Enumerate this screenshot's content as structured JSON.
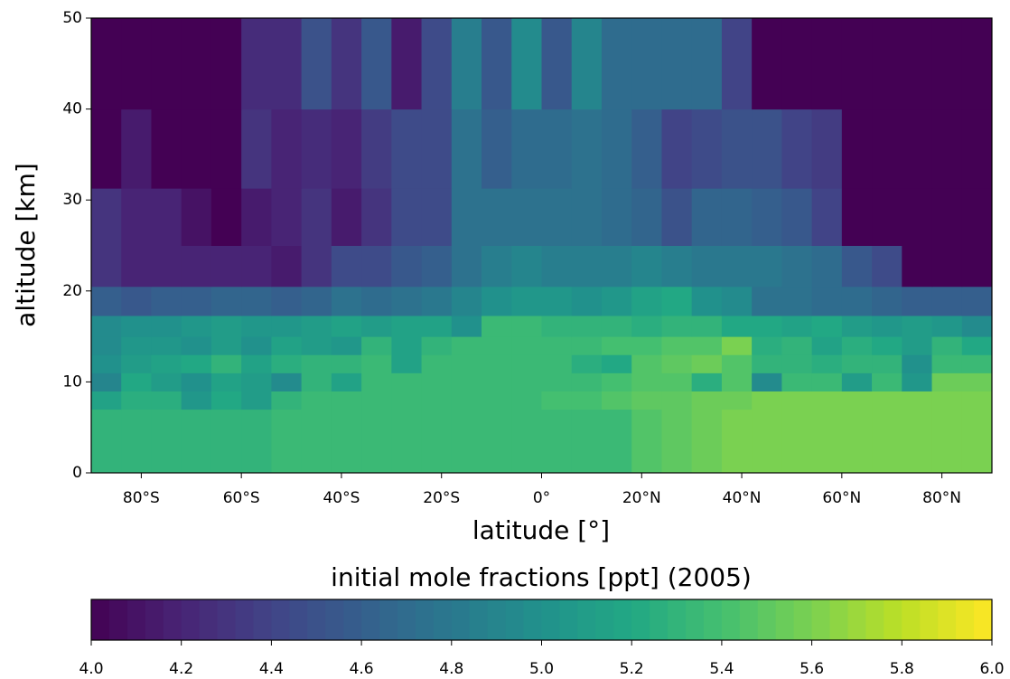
{
  "chart_data": {
    "type": "heatmap",
    "xlabel": "latitude [°]",
    "ylabel": "altitude [km]",
    "colorbar_label": "initial mole fractions [ppt] (2005)",
    "colormap": "viridis",
    "x_edges": [
      -90,
      -84,
      -78,
      -72,
      -66,
      -60,
      -54,
      -48,
      -42,
      -36,
      -30,
      -24,
      -18,
      -12,
      -6,
      0,
      6,
      12,
      18,
      24,
      30,
      36,
      42,
      48,
      54,
      60,
      66,
      72,
      78,
      84,
      90
    ],
    "y_edges": [
      0,
      7,
      9,
      11,
      13,
      15,
      17.3,
      20.5,
      25,
      31.3,
      40,
      50
    ],
    "values": [
      [
        5.3,
        5.3,
        5.3,
        5.3,
        5.3,
        5.3,
        5.35,
        5.35,
        5.35,
        5.35,
        5.35,
        5.35,
        5.35,
        5.35,
        5.35,
        5.35,
        5.35,
        5.35,
        5.45,
        5.5,
        5.55,
        5.6,
        5.6,
        5.6,
        5.6,
        5.6,
        5.6,
        5.6,
        5.6,
        5.6
      ],
      [
        5.15,
        5.25,
        5.25,
        5.05,
        5.2,
        5.1,
        5.3,
        5.35,
        5.35,
        5.35,
        5.35,
        5.35,
        5.35,
        5.35,
        5.35,
        5.4,
        5.4,
        5.45,
        5.5,
        5.5,
        5.55,
        5.55,
        5.6,
        5.6,
        5.6,
        5.6,
        5.6,
        5.6,
        5.6,
        5.6
      ],
      [
        4.9,
        5.2,
        5.1,
        5.0,
        5.15,
        5.1,
        4.95,
        5.3,
        5.15,
        5.35,
        5.35,
        5.35,
        5.35,
        5.35,
        5.35,
        5.35,
        5.35,
        5.4,
        5.45,
        5.45,
        5.25,
        5.45,
        4.95,
        5.35,
        5.35,
        5.1,
        5.35,
        5.05,
        5.55,
        5.55
      ],
      [
        5.0,
        5.1,
        5.15,
        5.2,
        5.3,
        5.15,
        5.25,
        5.3,
        5.3,
        5.35,
        5.15,
        5.35,
        5.35,
        5.35,
        5.35,
        5.35,
        5.25,
        5.2,
        5.45,
        5.5,
        5.55,
        5.45,
        5.3,
        5.3,
        5.25,
        5.3,
        5.3,
        5.0,
        5.35,
        5.35
      ],
      [
        4.95,
        5.05,
        5.05,
        5.0,
        5.1,
        5.0,
        5.15,
        5.1,
        5.05,
        5.3,
        5.15,
        5.3,
        5.35,
        5.35,
        5.35,
        5.35,
        5.35,
        5.4,
        5.4,
        5.45,
        5.45,
        5.6,
        5.25,
        5.3,
        5.15,
        5.25,
        5.2,
        5.1,
        5.3,
        5.2
      ],
      [
        4.95,
        5.0,
        5.0,
        5.05,
        5.1,
        5.05,
        5.05,
        5.1,
        5.15,
        5.1,
        5.15,
        5.15,
        5.0,
        5.35,
        5.35,
        5.3,
        5.3,
        5.3,
        5.25,
        5.3,
        5.3,
        5.2,
        5.2,
        5.15,
        5.2,
        5.1,
        5.05,
        5.1,
        5.05,
        4.95
      ],
      [
        4.6,
        4.55,
        4.6,
        4.6,
        4.65,
        4.65,
        4.6,
        4.65,
        4.75,
        4.7,
        4.75,
        4.8,
        4.9,
        5.0,
        5.05,
        5.05,
        5.0,
        5.05,
        5.15,
        5.2,
        5.0,
        4.95,
        4.75,
        4.75,
        4.7,
        4.7,
        4.65,
        4.6,
        4.6,
        4.6
      ],
      [
        4.3,
        4.2,
        4.2,
        4.2,
        4.2,
        4.2,
        4.15,
        4.3,
        4.45,
        4.45,
        4.55,
        4.6,
        4.75,
        4.85,
        4.9,
        4.85,
        4.85,
        4.85,
        4.9,
        4.85,
        4.8,
        4.8,
        4.8,
        4.75,
        4.7,
        4.55,
        4.45,
        4.0,
        4.0,
        4.0
      ],
      [
        4.3,
        4.2,
        4.2,
        4.1,
        4.0,
        4.15,
        4.2,
        4.3,
        4.15,
        4.3,
        4.45,
        4.45,
        4.75,
        4.75,
        4.75,
        4.75,
        4.75,
        4.7,
        4.65,
        4.5,
        4.65,
        4.65,
        4.6,
        4.55,
        4.4,
        4.0,
        4.0,
        4.0,
        4.0,
        4.0
      ],
      [
        4.0,
        4.15,
        4.0,
        4.0,
        4.0,
        4.3,
        4.2,
        4.25,
        4.2,
        4.35,
        4.45,
        4.45,
        4.75,
        4.6,
        4.7,
        4.7,
        4.75,
        4.7,
        4.6,
        4.4,
        4.45,
        4.5,
        4.5,
        4.4,
        4.35,
        4.0,
        4.0,
        4.0,
        4.0,
        4.0
      ],
      [
        4.0,
        4.0,
        4.0,
        4.0,
        4.0,
        4.25,
        4.25,
        4.5,
        4.3,
        4.55,
        4.15,
        4.45,
        4.85,
        4.55,
        4.95,
        4.55,
        4.9,
        4.7,
        4.7,
        4.7,
        4.7,
        4.4,
        4.0,
        4.0,
        4.0,
        4.0,
        4.0,
        4.0,
        4.0,
        4.0
      ]
    ],
    "xlim": [
      -90,
      90
    ],
    "xticks": [
      {
        "value": -80,
        "label": "80°S"
      },
      {
        "value": -60,
        "label": "60°S"
      },
      {
        "value": -40,
        "label": "40°S"
      },
      {
        "value": -20,
        "label": "20°S"
      },
      {
        "value": 0,
        "label": "0°"
      },
      {
        "value": 20,
        "label": "20°N"
      },
      {
        "value": 40,
        "label": "40°N"
      },
      {
        "value": 60,
        "label": "60°N"
      },
      {
        "value": 80,
        "label": "80°N"
      }
    ],
    "ylim": [
      0,
      50
    ],
    "yticks": [
      0,
      10,
      20,
      30,
      40,
      50
    ],
    "clim": [
      4,
      6
    ],
    "cticks": [
      {
        "value": 4,
        "label": "4.0"
      },
      {
        "value": 4.2,
        "label": "4.2"
      },
      {
        "value": 4.4,
        "label": "4.4"
      },
      {
        "value": 4.6,
        "label": "4.6"
      },
      {
        "value": 4.8,
        "label": "4.8"
      },
      {
        "value": 5,
        "label": "5.0"
      },
      {
        "value": 5.2,
        "label": "5.2"
      },
      {
        "value": 5.4,
        "label": "5.4"
      },
      {
        "value": 5.6,
        "label": "5.6"
      },
      {
        "value": 5.8,
        "label": "5.8"
      },
      {
        "value": 6,
        "label": "6.0"
      }
    ]
  }
}
